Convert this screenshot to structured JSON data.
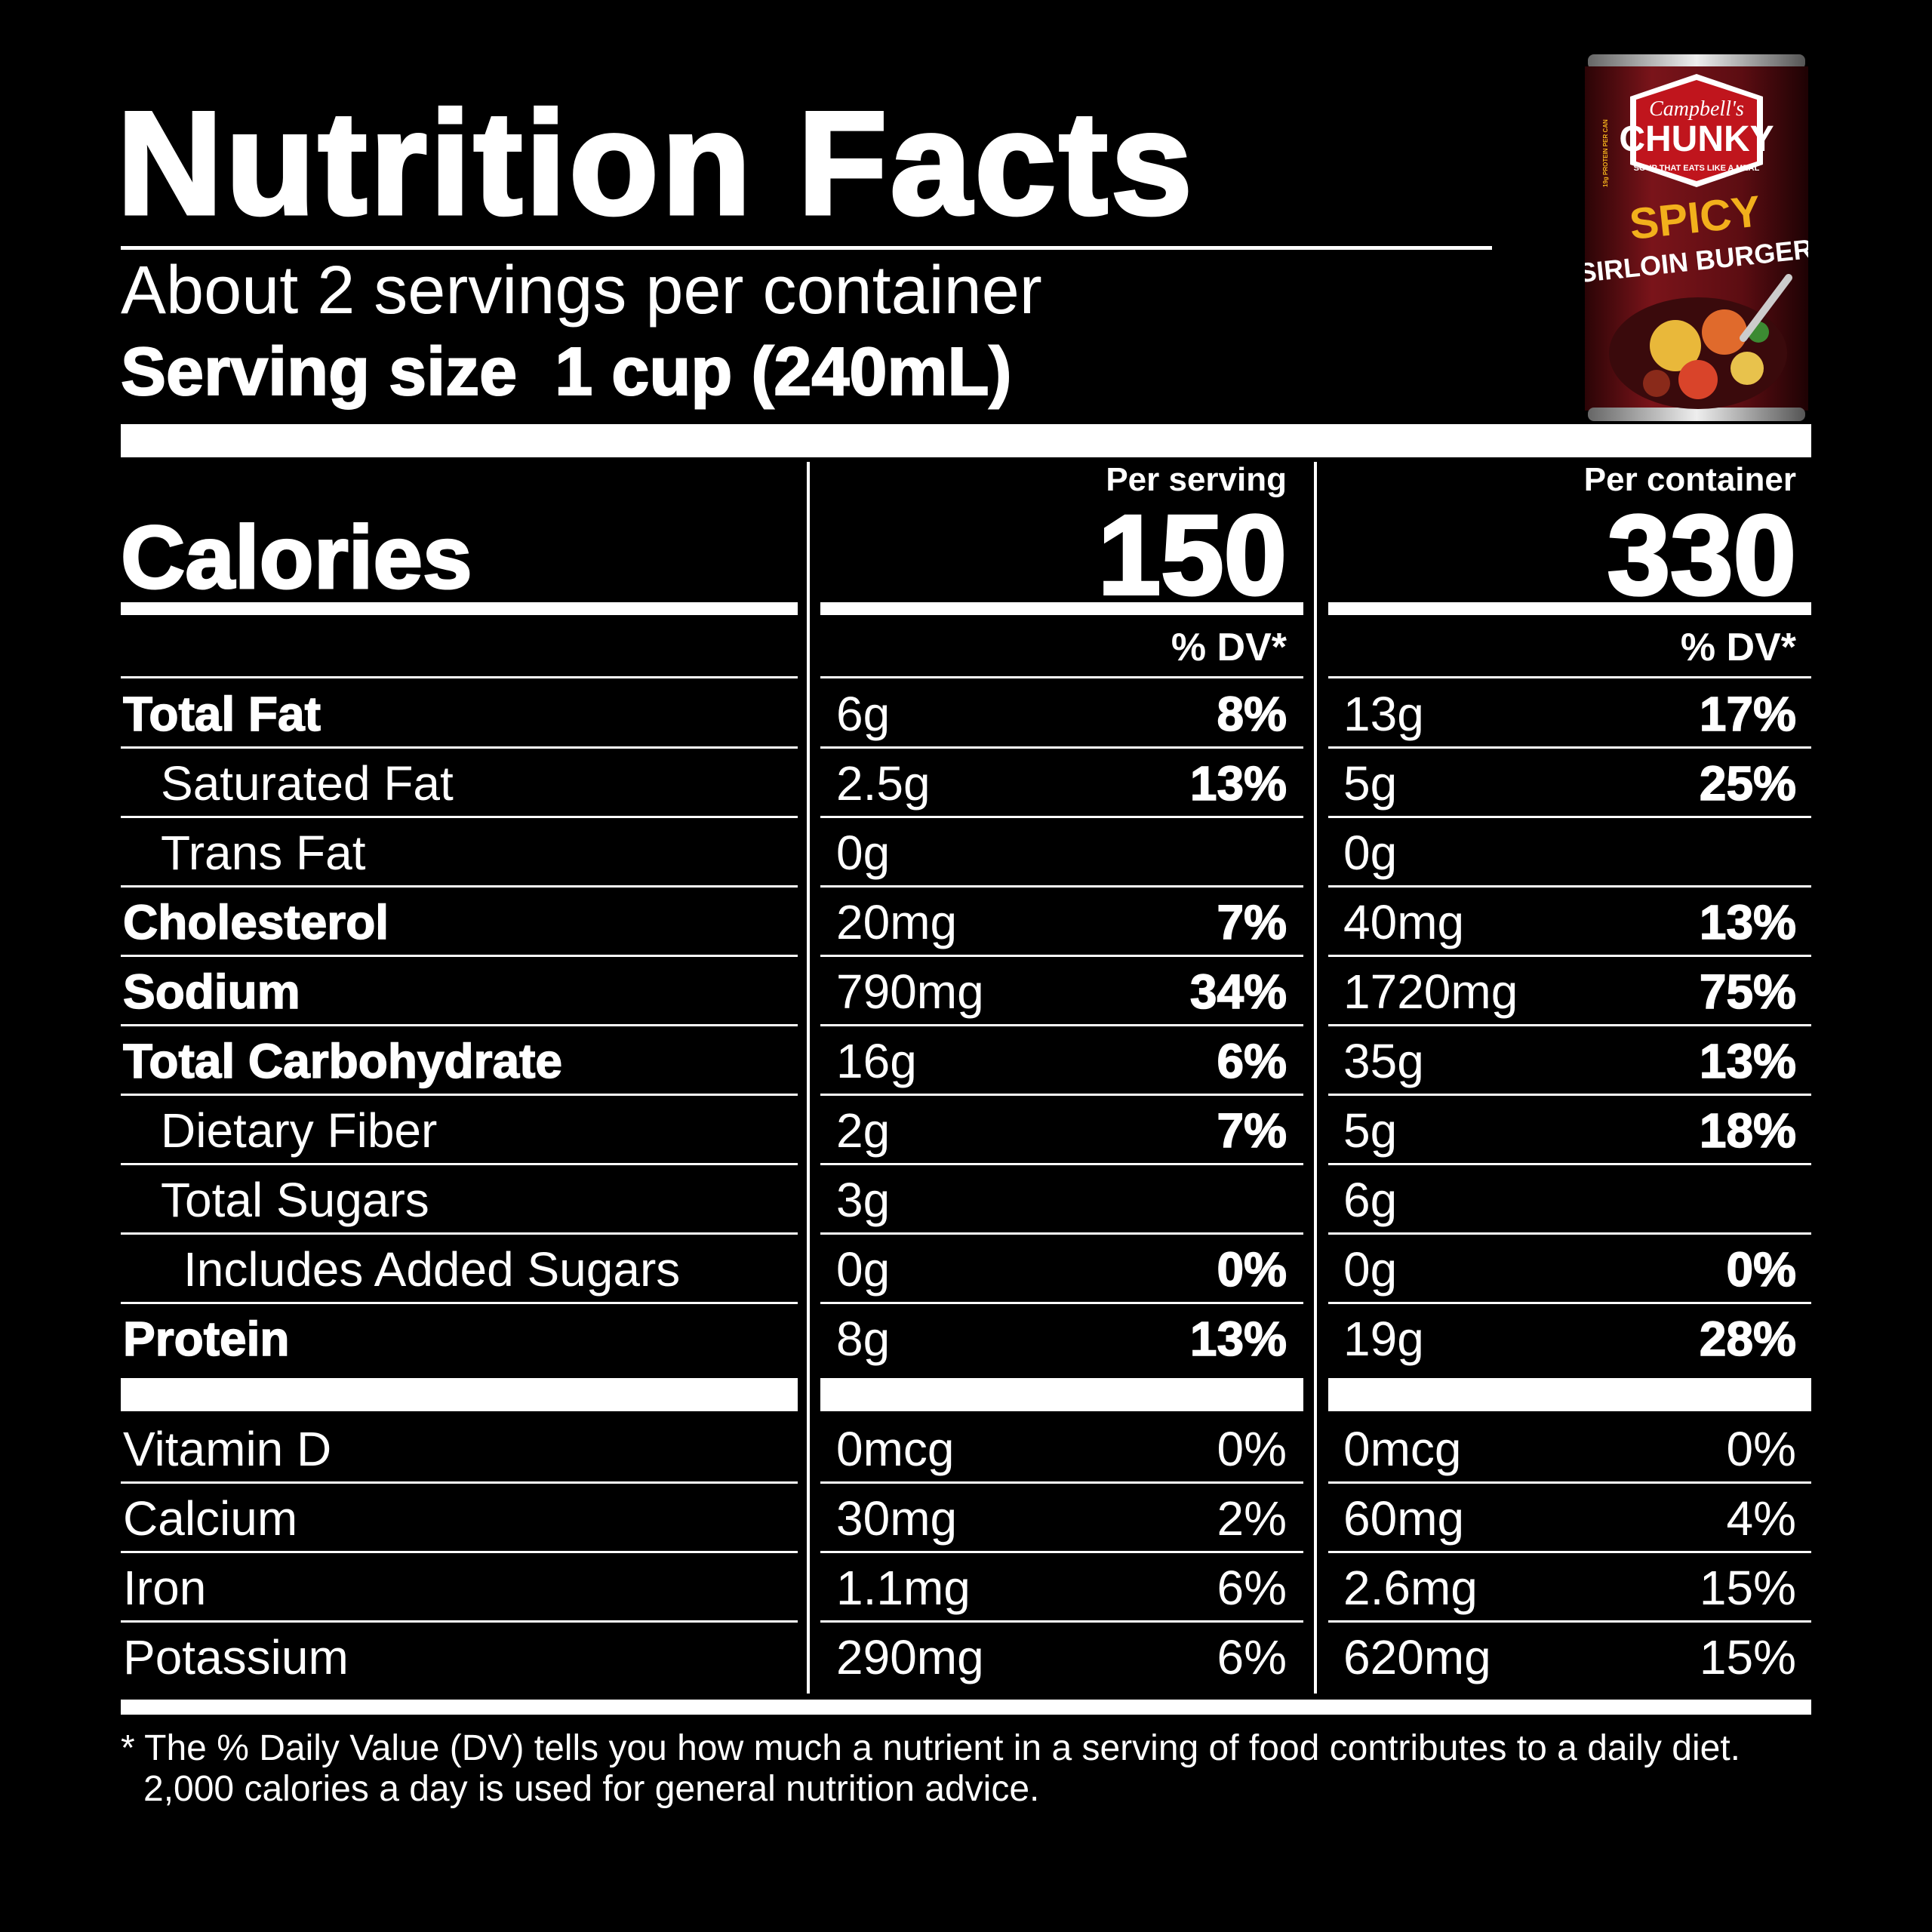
{
  "title": "Nutrition Facts",
  "servings_per_container": "About 2 servings per container",
  "serving_size": "Serving size  1 cup (240mL)",
  "calories": {
    "label": "Calories",
    "per_serving_label": "Per serving",
    "per_serving": "150",
    "per_container_label": "Per container",
    "per_container": "330"
  },
  "dv_header": "% DV*",
  "nutrients": [
    {
      "name": "Total Fat",
      "bold": true,
      "indent": 0,
      "s_amt": "6g",
      "s_dv": "8%",
      "c_amt": "13g",
      "c_dv": "17%"
    },
    {
      "name": "Saturated Fat",
      "bold": false,
      "indent": 1,
      "s_amt": "2.5g",
      "s_dv": "13%",
      "c_amt": "5g",
      "c_dv": "25%"
    },
    {
      "name": "Trans Fat",
      "bold": false,
      "indent": 1,
      "s_amt": "0g",
      "s_dv": "",
      "c_amt": "0g",
      "c_dv": ""
    },
    {
      "name": "Cholesterol",
      "bold": true,
      "indent": 0,
      "s_amt": "20mg",
      "s_dv": "7%",
      "c_amt": "40mg",
      "c_dv": "13%"
    },
    {
      "name": "Sodium",
      "bold": true,
      "indent": 0,
      "s_amt": "790mg",
      "s_dv": "34%",
      "c_amt": "1720mg",
      "c_dv": "75%"
    },
    {
      "name": "Total Carbohydrate",
      "bold": true,
      "indent": 0,
      "s_amt": "16g",
      "s_dv": "6%",
      "c_amt": "35g",
      "c_dv": "13%"
    },
    {
      "name": "Dietary Fiber",
      "bold": false,
      "indent": 1,
      "s_amt": "2g",
      "s_dv": "7%",
      "c_amt": "5g",
      "c_dv": "18%"
    },
    {
      "name": "Total Sugars",
      "bold": false,
      "indent": 1,
      "s_amt": "3g",
      "s_dv": "",
      "c_amt": "6g",
      "c_dv": ""
    },
    {
      "name": "Includes Added Sugars",
      "bold": false,
      "indent": 2,
      "s_amt": "0g",
      "s_dv": "0%",
      "c_amt": "0g",
      "c_dv": "0%"
    },
    {
      "name": "Protein",
      "bold": true,
      "indent": 0,
      "s_amt": "8g",
      "s_dv": "13%",
      "c_amt": "19g",
      "c_dv": "28%"
    }
  ],
  "vitamins": [
    {
      "name": "Vitamin D",
      "s_amt": "0mcg",
      "s_dv": "0%",
      "c_amt": "0mcg",
      "c_dv": "0%"
    },
    {
      "name": "Calcium",
      "s_amt": "30mg",
      "s_dv": "2%",
      "c_amt": "60mg",
      "c_dv": "4%"
    },
    {
      "name": "Iron",
      "s_amt": "1.1mg",
      "s_dv": "6%",
      "c_amt": "2.6mg",
      "c_dv": "15%"
    },
    {
      "name": "Potassium",
      "s_amt": "290mg",
      "s_dv": "6%",
      "c_amt": "620mg",
      "c_dv": "15%"
    }
  ],
  "footnote": {
    "line1": "* The % Daily Value (DV) tells you how much a nutrient in a serving of food contributes to a daily diet.",
    "line2": "2,000 calories a day is used for general nutrition advice."
  },
  "product_can": {
    "brand": "Campbell's",
    "product_line": "CHUNKY",
    "tagline": "SOUP THAT EATS LIKE A MEAL",
    "flavor_1": "SPICY",
    "flavor_2": "SIRLOIN BURGER",
    "protein_badge": "19g PROTEIN PER CAN",
    "colors": {
      "can": "#6a0f14",
      "label_red": "#c0151d",
      "flavor_gold": "#f2b01c"
    }
  }
}
